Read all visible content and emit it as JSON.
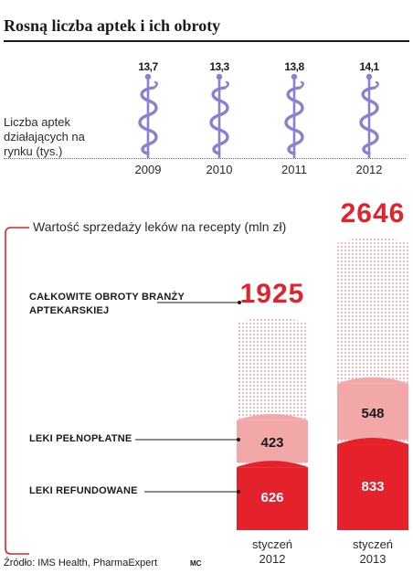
{
  "title": "Rosną liczba aptek i ich obroty",
  "pharmacies": {
    "label": "Liczba aptek działających na rynku (tys.)",
    "icon": "caduceus-icon",
    "icon_color": "#8b7fd4",
    "items": [
      {
        "year": "2009",
        "count": "13,7"
      },
      {
        "year": "2010",
        "count": "13,3"
      },
      {
        "year": "2011",
        "count": "13,8"
      },
      {
        "year": "2012",
        "count": "14,1"
      }
    ]
  },
  "chart_data": {
    "type": "bar",
    "title": "Wartość sprzedaży leków na recepty (mln zł)",
    "categories": [
      "styczeń 2012",
      "styczeń 2013"
    ],
    "series": [
      {
        "name": "LEKI REFUNDOWANE",
        "values": [
          626,
          833
        ],
        "color": "#e5212b"
      },
      {
        "name": "LEKI PEŁNOPŁATNE",
        "values": [
          423,
          548
        ],
        "color": "#f2a7a9"
      },
      {
        "name": "CAŁKOWITE OBROTY BRANŻY APTEKARSKIEJ",
        "values": [
          1925,
          2646
        ],
        "color": "#f6c7c8",
        "pattern": "dotted"
      }
    ],
    "totals_labels": [
      "1925",
      "2646"
    ],
    "segment_labels": {
      "refunded": [
        "626",
        "833"
      ],
      "fullprice": [
        "423",
        "548"
      ]
    },
    "month_labels": [
      [
        "styczeń",
        "2012"
      ],
      [
        "styczeń",
        "2013"
      ]
    ]
  },
  "source": "Źródło: IMS Health, PharmaExpert",
  "author": "MC",
  "colors": {
    "accent": "#e5212b",
    "dark": "#1a1a1a"
  }
}
